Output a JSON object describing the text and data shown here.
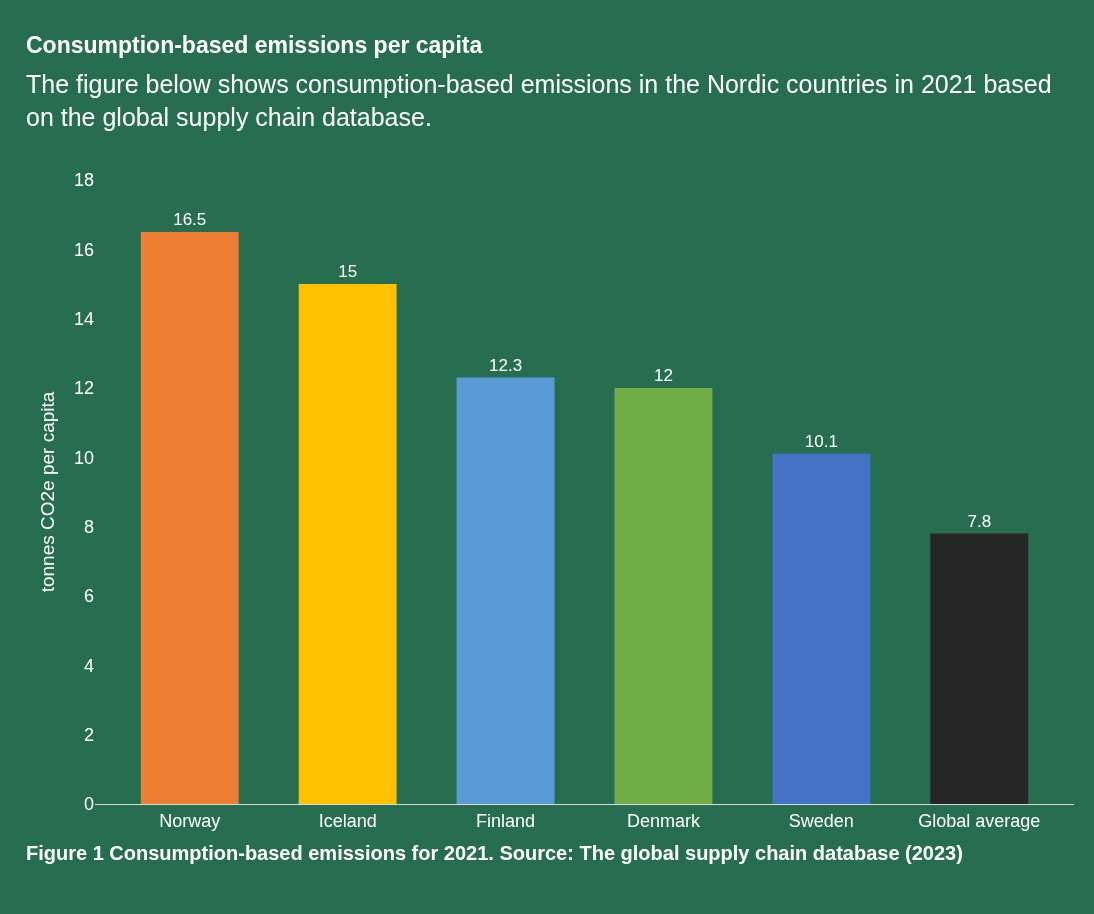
{
  "chart_data": {
    "type": "bar",
    "title": "Consumption-based emissions per capita",
    "subtitle": "The figure below shows consumption-based emissions in the Nordic countries in 2021 based on the global supply chain database.",
    "ylabel": "tonnes CO2e per capita",
    "categories": [
      "Norway",
      "Iceland",
      "Finland",
      "Denmark",
      "Sweden",
      "Global average"
    ],
    "values": [
      16.5,
      15,
      12.3,
      12,
      10.1,
      7.8
    ],
    "colors": [
      "#ed7d31",
      "#ffc000",
      "#5b9bd5",
      "#70ad47",
      "#4472c4",
      "#262626"
    ],
    "ylim": [
      0,
      18
    ],
    "yticks": [
      0,
      2,
      4,
      6,
      8,
      10,
      12,
      14,
      16,
      18
    ],
    "data_labels": true,
    "grid": false,
    "legend": false,
    "annotations": [
      "Figure 1 Consumption-based emissions for 2021. Source: The global supply chain database (2023)"
    ]
  }
}
